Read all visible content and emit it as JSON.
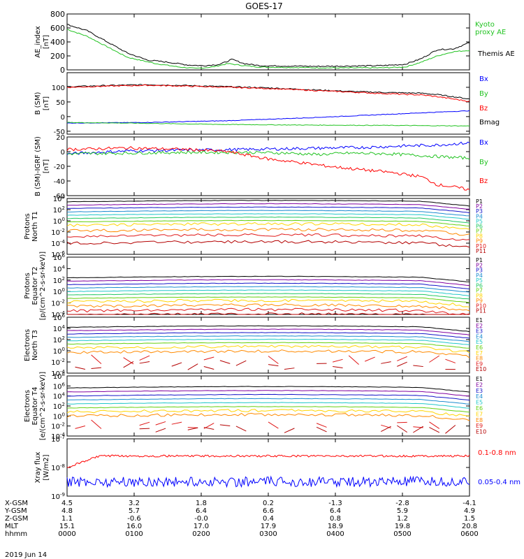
{
  "title": "GOES-17",
  "date": "2019 Jun 14",
  "colors": {
    "black": "#000000",
    "green": "#22c322",
    "blue": "#0000ff",
    "red": "#ff0000",
    "kyoto": "#33cc33",
    "p_palette": [
      "#000000",
      "#8000a0",
      "#1515c8",
      "#1c8cd0",
      "#22c8c8",
      "#22c862",
      "#66d011",
      "#ffd400",
      "#ff8a00",
      "#e01818",
      "#b40000"
    ]
  },
  "chart_data": [
    {
      "type": "line",
      "ylabel": "AE_index [nT]",
      "ylim": [
        0,
        800
      ],
      "yticks": [
        "800",
        "600",
        "400",
        "200",
        "0"
      ],
      "series": [
        {
          "name": "Kyoto proxy AE",
          "color": "#22c322",
          "values": [
            [
              0,
              580
            ],
            [
              5,
              480
            ],
            [
              10,
              330
            ],
            [
              15,
              180
            ],
            [
              22,
              90
            ],
            [
              28,
              40
            ],
            [
              32,
              20
            ],
            [
              36,
              40
            ],
            [
              40,
              90
            ],
            [
              44,
              60
            ],
            [
              48,
              40
            ],
            [
              55,
              35
            ],
            [
              62,
              30
            ],
            [
              70,
              28
            ],
            [
              78,
              30
            ],
            [
              84,
              40
            ],
            [
              88,
              110
            ],
            [
              92,
              200
            ],
            [
              96,
              260
            ],
            [
              100,
              280
            ]
          ]
        },
        {
          "name": "Themis AE",
          "color": "#000000",
          "values": [
            [
              0,
              650
            ],
            [
              5,
              560
            ],
            [
              10,
              400
            ],
            [
              15,
              240
            ],
            [
              20,
              140
            ],
            [
              25,
              110
            ],
            [
              30,
              70
            ],
            [
              34,
              60
            ],
            [
              38,
              80
            ],
            [
              41,
              150
            ],
            [
              44,
              90
            ],
            [
              48,
              60
            ],
            [
              55,
              55
            ],
            [
              62,
              50
            ],
            [
              70,
              55
            ],
            [
              78,
              60
            ],
            [
              84,
              80
            ],
            [
              88,
              160
            ],
            [
              92,
              290
            ],
            [
              96,
              300
            ],
            [
              100,
              390
            ]
          ]
        }
      ]
    },
    {
      "type": "line",
      "ylabel": "B (SM) [nT]",
      "ylim": [
        -60,
        150
      ],
      "yticks": [
        "150",
        "100",
        "50",
        "0",
        "-50"
      ],
      "series": [
        {
          "name": "Bx",
          "color": "#0000ff",
          "values": [
            [
              0,
              -22
            ],
            [
              20,
              -20
            ],
            [
              40,
              -14
            ],
            [
              60,
              -4
            ],
            [
              80,
              8
            ],
            [
              100,
              20
            ]
          ]
        },
        {
          "name": "By",
          "color": "#22c322",
          "values": [
            [
              0,
              -20
            ],
            [
              20,
              -23
            ],
            [
              40,
              -27
            ],
            [
              60,
              -29
            ],
            [
              80,
              -30
            ],
            [
              100,
              -32
            ]
          ]
        },
        {
          "name": "Bz",
          "color": "#ff0000",
          "values": [
            [
              0,
              100
            ],
            [
              10,
              104
            ],
            [
              20,
              107
            ],
            [
              30,
              104
            ],
            [
              40,
              100
            ],
            [
              50,
              96
            ],
            [
              60,
              90
            ],
            [
              70,
              84
            ],
            [
              80,
              78
            ],
            [
              88,
              74
            ],
            [
              92,
              68
            ],
            [
              96,
              60
            ],
            [
              100,
              52
            ]
          ]
        },
        {
          "name": "Bmag",
          "color": "#000000",
          "values": [
            [
              0,
              102
            ],
            [
              10,
              106
            ],
            [
              20,
              109
            ],
            [
              30,
              106
            ],
            [
              40,
              102
            ],
            [
              50,
              98
            ],
            [
              60,
              92
            ],
            [
              70,
              86
            ],
            [
              80,
              82
            ],
            [
              88,
              80
            ],
            [
              92,
              75
            ],
            [
              96,
              68
            ],
            [
              100,
              60
            ]
          ]
        }
      ]
    },
    {
      "type": "line",
      "ylabel": "B (SM)-IGRF (SM) [nT]",
      "ylim": [
        -60,
        20
      ],
      "yticks": [
        "20",
        "0",
        "-20",
        "-40",
        "-60"
      ],
      "series": [
        {
          "name": "Bx",
          "color": "#0000ff",
          "values": [
            [
              0,
              -3
            ],
            [
              15,
              1
            ],
            [
              30,
              2
            ],
            [
              45,
              3
            ],
            [
              55,
              4
            ],
            [
              65,
              5
            ],
            [
              75,
              6
            ],
            [
              85,
              8
            ],
            [
              92,
              9
            ],
            [
              100,
              12
            ]
          ]
        },
        {
          "name": "By",
          "color": "#22c322",
          "values": [
            [
              0,
              -3
            ],
            [
              15,
              -2
            ],
            [
              30,
              -1
            ],
            [
              45,
              -1
            ],
            [
              55,
              -2
            ],
            [
              62,
              -4
            ],
            [
              70,
              -2
            ],
            [
              80,
              -3
            ],
            [
              90,
              -6
            ],
            [
              100,
              -9
            ]
          ]
        },
        {
          "name": "Bz",
          "color": "#ff0000",
          "values": [
            [
              0,
              3
            ],
            [
              15,
              5
            ],
            [
              30,
              3
            ],
            [
              40,
              0
            ],
            [
              50,
              -10
            ],
            [
              58,
              -15
            ],
            [
              65,
              -20
            ],
            [
              72,
              -24
            ],
            [
              80,
              -28
            ],
            [
              88,
              -34
            ],
            [
              92,
              -45
            ],
            [
              96,
              -48
            ],
            [
              100,
              -52
            ]
          ]
        }
      ]
    },
    {
      "type": "line",
      "ylabel": "Protons North T1",
      "ylabel2": "",
      "ylim_log": [
        -6,
        4
      ],
      "yticks": [
        "10^4",
        "10^2",
        "10^0",
        "10^-2",
        "10^-4",
        "10^-6"
      ],
      "series_names": [
        "P1",
        "P2",
        "P3",
        "P4",
        "P5",
        "P6",
        "P7",
        "P8",
        "P9",
        "P10",
        "P11"
      ],
      "levels": [
        3.4,
        2.8,
        2.2,
        1.6,
        1.0,
        0.4,
        -0.2,
        -0.8,
        -1.8,
        -2.8,
        -4.0
      ]
    },
    {
      "type": "line",
      "ylabel": "Protons Equator T2",
      "ylabel2": "[p/(cm^2-s-sr-keV)]",
      "ylim_log": [
        -6,
        4
      ],
      "yticks": [
        "10^6",
        "10^4",
        "10^2",
        "10^0",
        "10^-2",
        "10^-4"
      ],
      "series_names": [
        "P1",
        "P2",
        "P3",
        "P4",
        "P5",
        "P6",
        "P7",
        "P8",
        "P9",
        "P10",
        "P11"
      ],
      "levels": [
        2.4,
        1.8,
        1.2,
        0.6,
        0.0,
        -0.6,
        -1.2,
        -1.8,
        -2.6,
        -3.4,
        -4.2
      ]
    },
    {
      "type": "line",
      "ylabel": "Electrons North T3",
      "ylabel2": "",
      "yticks": [
        "10^6",
        "10^4",
        "10^2",
        "10^0",
        "10^-2",
        "10^-4"
      ],
      "series_names": [
        "E1",
        "E2",
        "E3",
        "E4",
        "E5",
        "E6",
        "E7",
        "E8",
        "E9",
        "E10"
      ],
      "levels": [
        4.2,
        3.6,
        3.0,
        2.4,
        1.8,
        1.2,
        0.5,
        -0.3,
        -1.6,
        -2.6
      ]
    },
    {
      "type": "line",
      "ylabel": "Electrons Equator T4",
      "ylabel2": "[e/(cm^2-s-sr-keV)]",
      "yticks": [
        "10^8",
        "10^6",
        "10^4",
        "10^2",
        "10^0",
        "10^-2",
        "10^-4"
      ],
      "series_names": [
        "E1",
        "E2",
        "E3",
        "E4",
        "E5",
        "E6",
        "E7",
        "E8",
        "E9",
        "E10"
      ],
      "levels": [
        5.6,
        4.8,
        4.0,
        3.2,
        2.4,
        1.6,
        0.8,
        0.0,
        -1.6,
        -2.6
      ]
    },
    {
      "type": "line",
      "ylabel": "Xray flux [W/m^2]",
      "yticks": [
        "10^-7",
        "10^-8",
        "10^-9"
      ],
      "series": [
        {
          "name": "0.1-0.8 nm",
          "color": "#ff0000",
          "level": -7.6
        },
        {
          "name": "0.05-0.4 nm",
          "color": "#0000ff",
          "level": -8.5
        }
      ]
    }
  ],
  "ephemeris": {
    "row_labels": [
      "X-GSM",
      "Y-GSM",
      "Z-GSM",
      "MLT",
      "hhmm"
    ],
    "columns": [
      [
        "4.5",
        "4.8",
        "1.1",
        "15.1",
        "0000"
      ],
      [
        "3.2",
        "5.7",
        "-0.6",
        "16.0",
        "0100"
      ],
      [
        "1.8",
        "6.4",
        "-0.0",
        "17.0",
        "0200"
      ],
      [
        "0.2",
        "6.6",
        "0.4",
        "17.9",
        "0300"
      ],
      [
        "-1.3",
        "6.4",
        "0.8",
        "18.9",
        "0400"
      ],
      [
        "-2.8",
        "5.9",
        "1.2",
        "19.8",
        "0500"
      ],
      [
        "-4.1",
        "4.9",
        "1.5",
        "20.8",
        "0600"
      ]
    ]
  }
}
